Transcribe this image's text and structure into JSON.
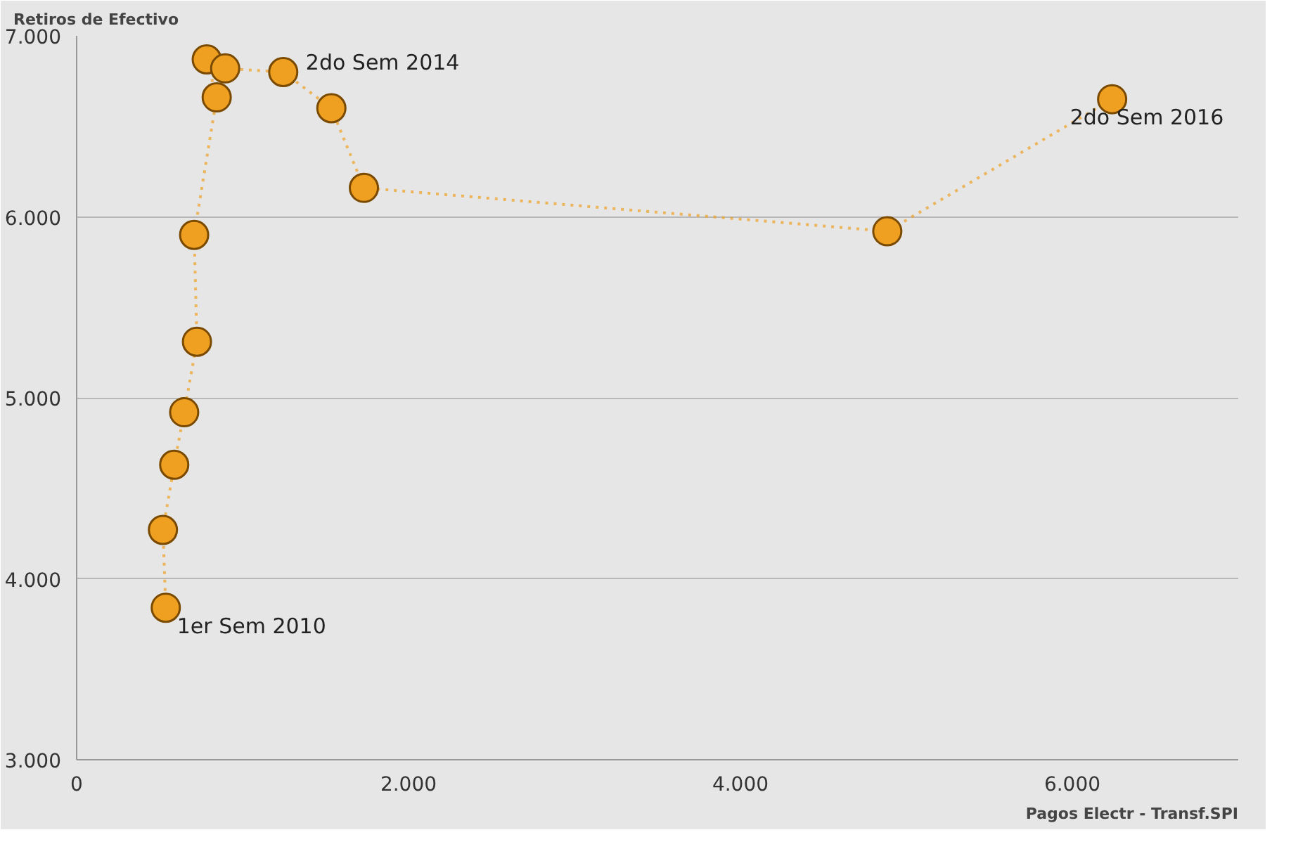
{
  "chart_data": {
    "type": "line",
    "xlabel": "Pagos Electr - Transf.SPI",
    "ylabel": "Retiros de Efectivo",
    "x": [
      537,
      520,
      588,
      648,
      725,
      708,
      844,
      784,
      895,
      1245,
      1535,
      1731,
      4885,
      6240
    ],
    "series": [
      {
        "color": "#f0a020",
        "values": [
          3840,
          4270,
          4630,
          4920,
          5310,
          5900,
          6660,
          6870,
          6820,
          6800,
          6600,
          6160,
          5920,
          6650
        ]
      }
    ],
    "xlim": [
      0,
      7000
    ],
    "ylim": [
      3000,
      7000
    ],
    "xticks": [
      0,
      {
        "value": 2000,
        "label": "2.000"
      },
      {
        "value": 4000,
        "label": "4.000"
      },
      {
        "value": 6000,
        "label": "6.000"
      }
    ],
    "yticks": [
      {
        "value": 3000,
        "label": "3.000"
      },
      {
        "value": 4000,
        "label": "4.000"
      },
      {
        "value": 5000,
        "label": "5.000"
      },
      {
        "value": 6000,
        "label": "6.000"
      },
      {
        "value": 7000,
        "label": "7.000"
      }
    ],
    "grid": "y",
    "marker": "circle",
    "line_style": "dotted",
    "annotations": [
      {
        "text": "1er Sem 2010",
        "x": 537,
        "y": 3840
      },
      {
        "text": "2do Sem 2014",
        "x": 1245,
        "y": 6800
      },
      {
        "text": "2do Sem 2016",
        "x": 6240,
        "y": 6650
      }
    ]
  }
}
